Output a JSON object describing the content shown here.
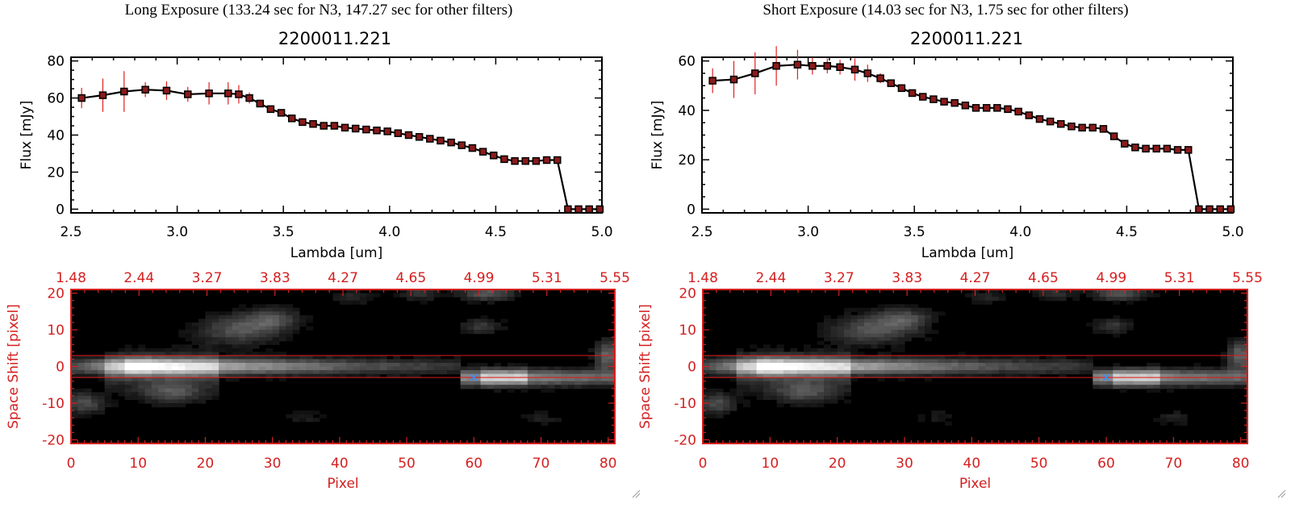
{
  "panels": [
    {
      "heading": "Long Exposure (133.24 sec for N3, 147.27 sec for other filters)",
      "object": "2200011.221",
      "spectrum": {
        "type": "line",
        "xlabel": "Lambda [um]",
        "ylabel": "Flux [mJy]",
        "xlim": [
          2.5,
          5.0
        ],
        "ylim": [
          -2,
          82
        ],
        "xticks": [
          "2.5",
          "3.0",
          "3.5",
          "4.0",
          "4.5",
          "5.0"
        ],
        "yticks": [
          "0",
          "20",
          "40",
          "60",
          "80"
        ],
        "x": [
          2.55,
          2.65,
          2.75,
          2.85,
          2.95,
          3.05,
          3.15,
          3.24,
          3.29,
          3.34,
          3.39,
          3.44,
          3.49,
          3.54,
          3.59,
          3.64,
          3.69,
          3.74,
          3.79,
          3.84,
          3.89,
          3.94,
          3.99,
          4.04,
          4.09,
          4.14,
          4.19,
          4.24,
          4.29,
          4.34,
          4.39,
          4.44,
          4.49,
          4.54,
          4.59,
          4.64,
          4.69,
          4.74,
          4.79,
          4.84,
          4.89,
          4.94,
          4.99
        ],
        "y": [
          60,
          61.5,
          63.5,
          64.5,
          64,
          62,
          62.5,
          62.5,
          62,
          60,
          57,
          54,
          52,
          49,
          47,
          46,
          45,
          45,
          44,
          43.5,
          43,
          42.5,
          42,
          41,
          40,
          39,
          38,
          37,
          36,
          34.5,
          33,
          31,
          29,
          27,
          26,
          26,
          26,
          26.5,
          26.5,
          0,
          0,
          0,
          0
        ],
        "yerr": [
          5.5,
          9,
          11,
          4,
          5,
          4,
          6,
          6,
          5,
          3,
          2,
          1.5,
          1.2,
          1.2,
          1,
          1,
          1,
          1,
          1,
          1,
          1,
          1,
          1,
          1,
          1,
          1,
          1,
          1,
          1,
          1,
          1,
          1,
          1,
          1,
          1,
          1,
          1,
          1,
          1,
          0,
          0,
          0,
          0
        ]
      },
      "image": {
        "type": "heatmap",
        "xlabel": "Pixel",
        "ylabel": "Space Shift [pixel]",
        "xlim": [
          0,
          81
        ],
        "ylim": [
          -21,
          21
        ],
        "xticks": [
          "0",
          "10",
          "20",
          "30",
          "40",
          "50",
          "60",
          "70",
          "80"
        ],
        "yticks": [
          "-20",
          "-10",
          "0",
          "10",
          "20"
        ],
        "top_ticks": [
          "1.48",
          "2.44",
          "3.27",
          "3.83",
          "4.27",
          "4.65",
          "4.99",
          "5.31",
          "5.55"
        ],
        "aperture_rows": [
          3,
          -3
        ],
        "marker": {
          "x": 60,
          "y": -3
        }
      }
    },
    {
      "heading": "Short Exposure (14.03 sec for N3, 1.75 sec for other filters)",
      "object": "2200011.221",
      "spectrum": {
        "type": "line",
        "xlabel": "Lambda [um]",
        "ylabel": "Flux [mJy]",
        "xlim": [
          2.5,
          5.0
        ],
        "ylim": [
          -1.5,
          61.5
        ],
        "xticks": [
          "2.5",
          "3.0",
          "3.5",
          "4.0",
          "4.5",
          "5.0"
        ],
        "yticks": [
          "0",
          "20",
          "40",
          "60"
        ],
        "x": [
          2.55,
          2.65,
          2.75,
          2.85,
          2.95,
          3.02,
          3.09,
          3.15,
          3.22,
          3.28,
          3.34,
          3.39,
          3.44,
          3.49,
          3.54,
          3.59,
          3.64,
          3.69,
          3.74,
          3.79,
          3.84,
          3.89,
          3.94,
          3.99,
          4.04,
          4.09,
          4.14,
          4.19,
          4.24,
          4.29,
          4.34,
          4.39,
          4.44,
          4.49,
          4.54,
          4.59,
          4.64,
          4.69,
          4.74,
          4.79,
          4.84,
          4.89,
          4.94,
          4.99
        ],
        "y": [
          52,
          52.5,
          55,
          58,
          58.5,
          58,
          58,
          57.5,
          56.5,
          55,
          53,
          51,
          49,
          47,
          45.5,
          44.5,
          43.5,
          43,
          42,
          41,
          41,
          41,
          40.5,
          39.5,
          38,
          36.5,
          35.5,
          34.5,
          33.5,
          33,
          33,
          32.5,
          29.5,
          26.5,
          25,
          24.5,
          24.5,
          24.5,
          24,
          24,
          0,
          0,
          0,
          0
        ],
        "yerr": [
          5,
          7.5,
          8.5,
          8,
          6,
          3.5,
          3,
          3,
          4.5,
          3.5,
          2,
          1.5,
          1,
          1,
          1,
          1,
          1,
          1,
          1,
          1,
          1,
          1,
          1,
          1,
          1,
          1,
          1,
          1,
          1,
          1,
          1,
          1,
          1,
          1,
          1,
          1,
          1,
          1,
          1,
          1,
          0,
          0,
          0,
          0
        ]
      },
      "image": {
        "type": "heatmap",
        "xlabel": "Pixel",
        "ylabel": "Space Shift [pixel]",
        "xlim": [
          0,
          81
        ],
        "ylim": [
          -21,
          21
        ],
        "xticks": [
          "0",
          "10",
          "20",
          "30",
          "40",
          "50",
          "60",
          "70",
          "80"
        ],
        "yticks": [
          "-20",
          "-10",
          "0",
          "10",
          "20"
        ],
        "top_ticks": [
          "1.48",
          "2.44",
          "3.27",
          "3.83",
          "4.27",
          "4.65",
          "4.99",
          "5.31",
          "5.55"
        ],
        "aperture_rows": [
          3,
          -3
        ],
        "marker": {
          "x": 60,
          "y": -3
        }
      }
    }
  ],
  "colors": {
    "axis": "#000000",
    "series": "#000000",
    "marker_fill": "#8b1a1a",
    "error_bars": "#e02020",
    "image_frame": "#d42020",
    "aperture_line": "#e01818",
    "source_marker": "#3a8cff"
  },
  "icons": [
    "resize-grip-icon"
  ]
}
